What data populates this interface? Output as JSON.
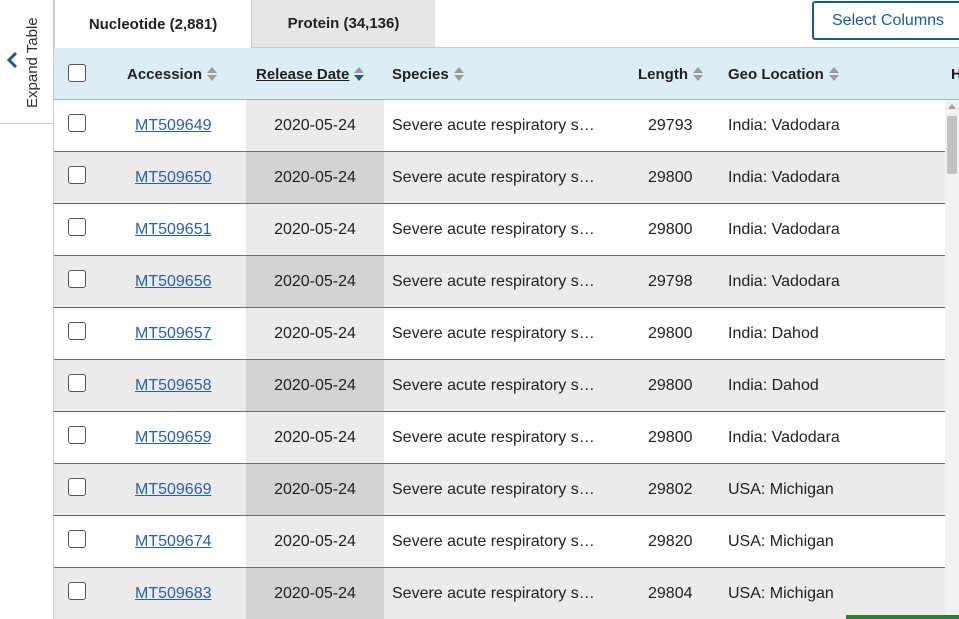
{
  "sidebar": {
    "expand_label": "Expand Table"
  },
  "tabs": [
    {
      "label": "Nucleotide (2,881)",
      "active": true
    },
    {
      "label": "Protein (34,136)",
      "active": false
    }
  ],
  "toolbar": {
    "select_columns_label": "Select Columns"
  },
  "table": {
    "columns": [
      "Accession",
      "Release Date",
      "Species",
      "Length",
      "Geo Location",
      "H"
    ],
    "sorted_column": "Release Date",
    "rows": [
      {
        "accession": "MT509649",
        "release_date": "2020-05-24",
        "species": "Severe acute respiratory s…",
        "length": "29793",
        "geo": "India: Vadodara"
      },
      {
        "accession": "MT509650",
        "release_date": "2020-05-24",
        "species": "Severe acute respiratory s…",
        "length": "29800",
        "geo": "India: Vadodara"
      },
      {
        "accession": "MT509651",
        "release_date": "2020-05-24",
        "species": "Severe acute respiratory s…",
        "length": "29800",
        "geo": "India: Vadodara"
      },
      {
        "accession": "MT509656",
        "release_date": "2020-05-24",
        "species": "Severe acute respiratory s…",
        "length": "29798",
        "geo": "India: Vadodara"
      },
      {
        "accession": "MT509657",
        "release_date": "2020-05-24",
        "species": "Severe acute respiratory s…",
        "length": "29800",
        "geo": "India: Dahod"
      },
      {
        "accession": "MT509658",
        "release_date": "2020-05-24",
        "species": "Severe acute respiratory s…",
        "length": "29800",
        "geo": "India: Dahod"
      },
      {
        "accession": "MT509659",
        "release_date": "2020-05-24",
        "species": "Severe acute respiratory s…",
        "length": "29800",
        "geo": "India: Vadodara"
      },
      {
        "accession": "MT509669",
        "release_date": "2020-05-24",
        "species": "Severe acute respiratory s…",
        "length": "29802",
        "geo": "USA: Michigan"
      },
      {
        "accession": "MT509674",
        "release_date": "2020-05-24",
        "species": "Severe acute respiratory s…",
        "length": "29820",
        "geo": "USA: Michigan"
      },
      {
        "accession": "MT509683",
        "release_date": "2020-05-24",
        "species": "Severe acute respiratory s…",
        "length": "29804",
        "geo": "USA: Michigan"
      }
    ]
  },
  "colors": {
    "accent": "#1a5a96",
    "header_bg": "#dcedf5",
    "link": "#2a5fa6",
    "sorted_col_bg": "#d2d2d2"
  },
  "icons": [
    "chevron-left-icon",
    "sort-icon",
    "sort-desc-icon"
  ]
}
